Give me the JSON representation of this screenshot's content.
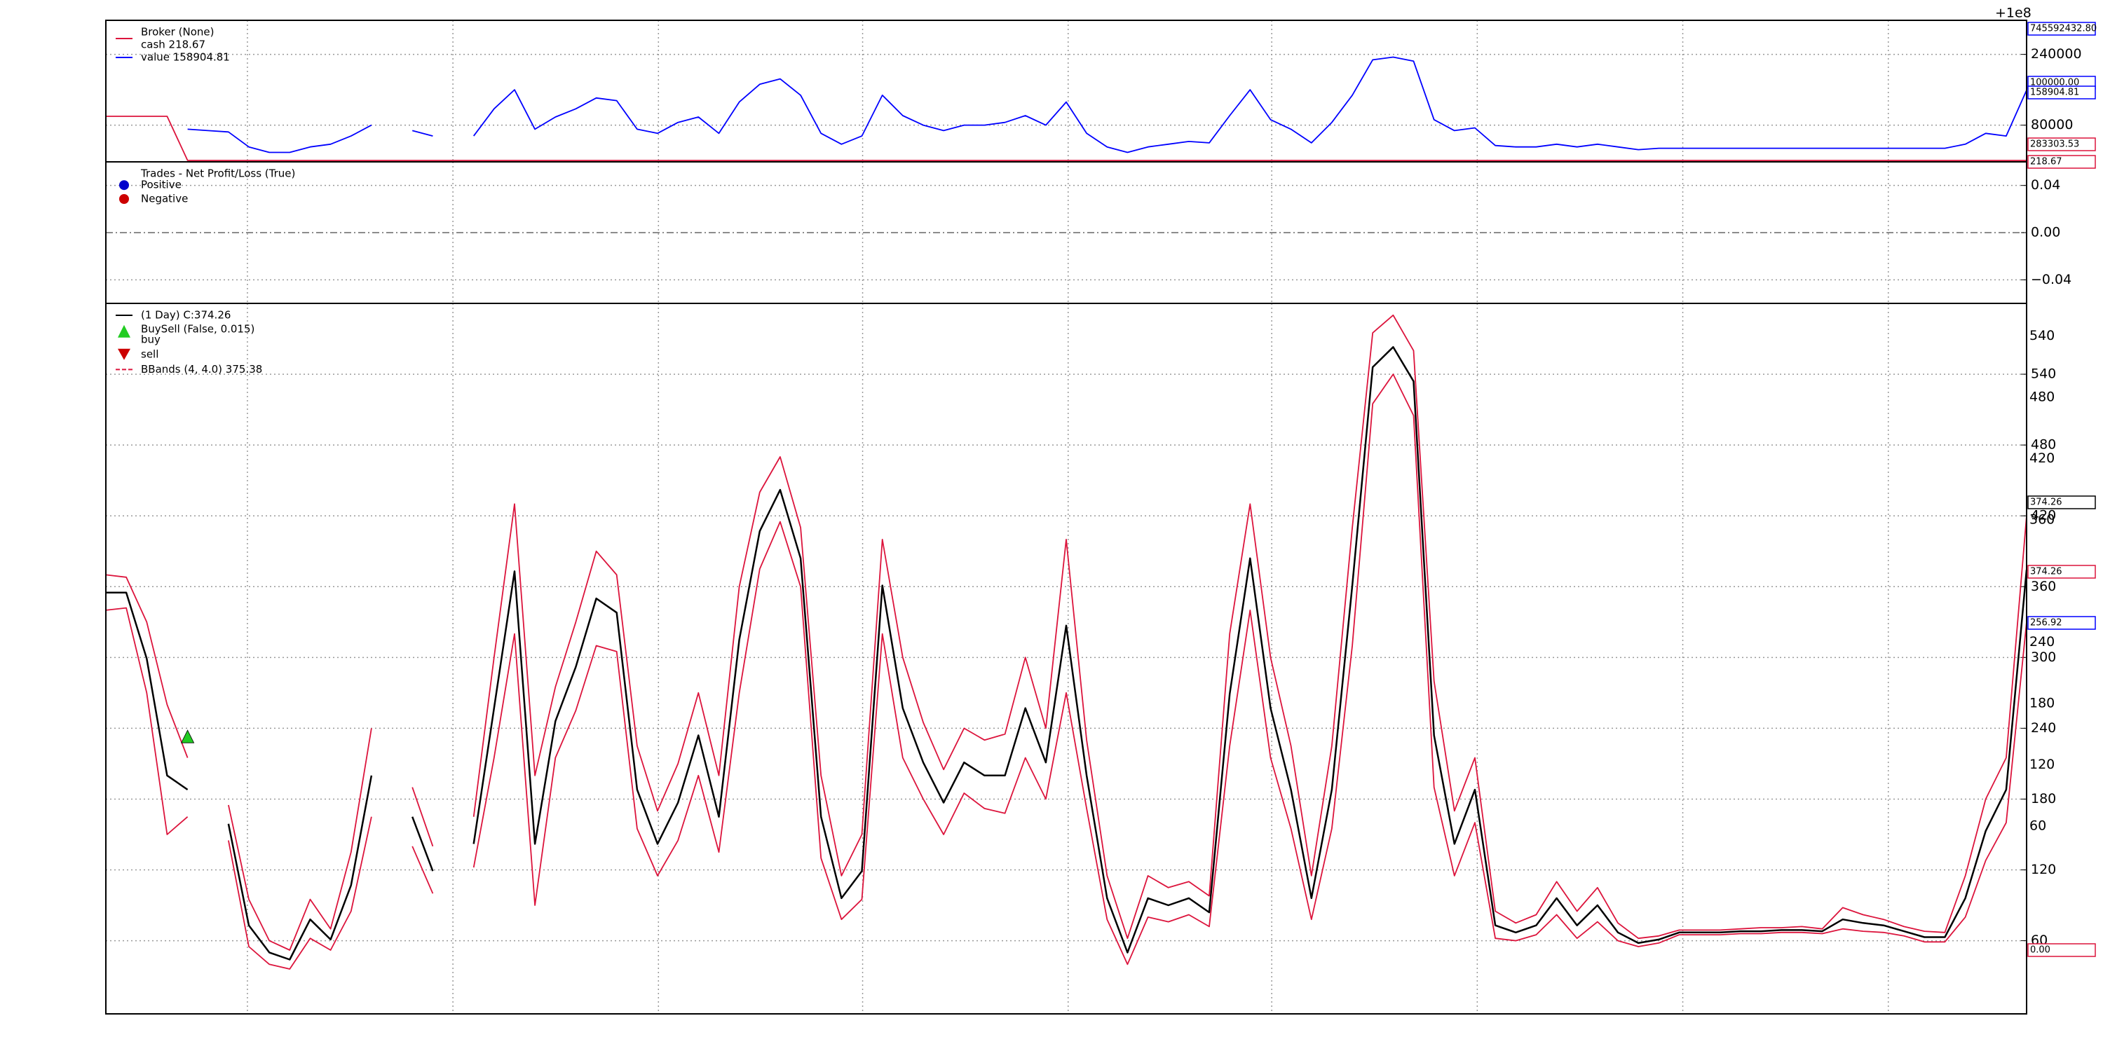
{
  "chart_data": [
    {
      "type": "line",
      "offset_text": "+1e8",
      "legend_title": "Broker (None)",
      "ylim": [
        -3000,
        317000
      ],
      "yticks": [
        80000,
        240000
      ],
      "grid": true,
      "series": [
        {
          "name": "cash 218.67",
          "color": "#dc143c",
          "values": [
            100000,
            100000,
            100000,
            100000,
            218.67,
            218.67,
            218.67,
            218.67,
            218.67,
            218.67,
            218.67,
            218.67,
            218.67,
            218.67,
            218.67,
            218.67,
            218.67,
            218.67,
            218.67,
            218.67,
            218.67,
            218.67,
            218.67,
            218.67,
            218.67,
            218.67,
            218.67,
            218.67,
            218.67,
            218.67,
            218.67,
            218.67,
            218.67,
            218.67,
            218.67,
            218.67,
            218.67,
            218.67,
            218.67,
            218.67,
            218.67,
            218.67,
            218.67,
            218.67,
            218.67,
            218.67,
            218.67,
            218.67,
            218.67,
            218.67,
            218.67,
            218.67,
            218.67,
            218.67,
            218.67,
            218.67,
            218.67,
            218.67,
            218.67,
            218.67,
            218.67,
            218.67,
            218.67,
            218.67,
            218.67,
            218.67,
            218.67,
            218.67,
            218.67,
            218.67,
            218.67,
            218.67,
            218.67,
            218.67,
            218.67,
            218.67,
            218.67,
            218.67,
            218.67,
            218.67,
            218.67,
            218.67,
            218.67,
            218.67,
            218.67,
            218.67,
            218.67,
            218.67,
            218.67,
            218.67,
            218.67,
            218.67,
            218.67,
            218.67,
            218.67
          ]
        },
        {
          "name": "value 158904.81",
          "color": "#0000ff",
          "values": [
            null,
            null,
            null,
            null,
            70769,
            67692,
            64615,
            30770,
            18460,
            18460,
            30770,
            36920,
            55380,
            80000,
            null,
            67690,
            55380,
            null,
            55380,
            116920,
            160000,
            70769,
            98460,
            116920,
            141540,
            135390,
            70769,
            61540,
            86150,
            98460,
            61540,
            132310,
            172310,
            184620,
            147690,
            61540,
            36920,
            55380,
            147690,
            101540,
            80000,
            67690,
            80000,
            80000,
            86150,
            101540,
            80000,
            132310,
            61540,
            30770,
            18460,
            30770,
            36920,
            43080,
            40000,
            101540,
            160000,
            92310,
            70769,
            40000,
            86150,
            147690,
            227690,
            233850,
            224620,
            92310,
            67690,
            73850,
            33850,
            30770,
            30770,
            36920,
            30770,
            36920,
            30770,
            24610,
            27690,
            27690,
            27690,
            27690,
            27690,
            27690,
            27690,
            27690,
            27690,
            27690,
            27690,
            27690,
            27690,
            27690,
            27690,
            36920,
            61540,
            55380,
            158904.81
          ]
        }
      ],
      "last_labels": [
        {
          "label": "745592432.80",
          "color": "#0000ff"
        },
        {
          "label": "100000.00",
          "color": "#0000ff"
        },
        {
          "label": "158904.81",
          "color": "#0000ff"
        },
        {
          "label": "283303.53",
          "color": "#dc143c"
        },
        {
          "label": "218.67",
          "color": "#dc143c"
        }
      ]
    },
    {
      "type": "scatter",
      "legend_title": "Trades - Net Profit/Loss (True)",
      "ylim": [
        -0.06,
        0.06
      ],
      "yticks": [
        0.04,
        {
          "value": 0,
          "label": "0.00"
        },
        {
          "value": -0.04,
          "label": "−0.04"
        }
      ],
      "grid": true,
      "series": [
        {
          "name": "Positive",
          "color": "#0000cc",
          "values": []
        },
        {
          "name": "Negative",
          "color": "#cc0000",
          "values": []
        }
      ]
    },
    {
      "type": "line",
      "ylim": [
        -2,
        600
      ],
      "yticks": [
        60,
        120,
        180,
        240,
        300,
        360,
        420,
        480,
        540
      ],
      "y2lim": [
        -124,
        572
      ],
      "y2ticks": [
        60,
        120,
        180,
        240,
        360,
        420,
        480,
        540
      ],
      "grid": true,
      "series": [
        {
          "name": "(1 Day) C:374.26",
          "color": "#000000",
          "values": [
            355,
            355,
            299,
            200,
            188,
            null,
            159,
            73,
            50,
            44,
            78,
            61,
            107,
            200,
            null,
            165,
            119,
            null,
            142,
            257,
            373,
            142,
            246,
            292,
            350,
            338,
            188,
            142,
            177,
            234,
            165,
            315,
            407,
            442,
            384,
            165,
            96,
            119,
            361,
            257,
            211,
            177,
            211,
            200,
            200,
            257,
            211,
            327,
            200,
            96,
            50,
            96,
            90,
            96,
            84,
            269,
            384,
            257,
            188,
            96,
            188,
            361,
            546,
            563,
            534,
            234,
            142,
            188,
            73,
            67,
            73,
            96,
            73,
            90,
            67,
            58,
            61,
            67,
            67,
            67,
            68,
            68,
            69,
            69,
            68,
            78,
            75,
            73,
            68,
            63,
            63,
            96,
            153,
            188,
            374.26
          ]
        },
        {
          "name": "BBands (4, 4.0) 375.38",
          "color": "#dc143c",
          "dash": true,
          "values": [
            370,
            368,
            330,
            260,
            215,
            null,
            175,
            95,
            60,
            52,
            95,
            70,
            135,
            240,
            null,
            190,
            140,
            null,
            165,
            300,
            430,
            200,
            275,
            330,
            390,
            370,
            225,
            170,
            210,
            270,
            200,
            360,
            440,
            470,
            410,
            200,
            115,
            150,
            400,
            300,
            245,
            205,
            240,
            230,
            235,
            300,
            240,
            400,
            230,
            115,
            62,
            115,
            105,
            110,
            98,
            320,
            430,
            300,
            225,
            115,
            225,
            410,
            575,
            590,
            560,
            280,
            170,
            215,
            85,
            75,
            82,
            110,
            85,
            105,
            75,
            62,
            64,
            69,
            69,
            69,
            70,
            71,
            71,
            72,
            70,
            88,
            82,
            78,
            72,
            68,
            67,
            115,
            180,
            215,
            420
          ],
          "lower": [
            340,
            342,
            270,
            150,
            165,
            null,
            145,
            55,
            40,
            36,
            62,
            52,
            85,
            165,
            null,
            140,
            100,
            null,
            122,
            215,
            320,
            90,
            215,
            255,
            310,
            305,
            155,
            115,
            145,
            200,
            135,
            270,
            375,
            415,
            360,
            130,
            78,
            95,
            320,
            215,
            180,
            150,
            185,
            172,
            168,
            215,
            180,
            270,
            172,
            78,
            40,
            80,
            76,
            82,
            72,
            225,
            340,
            215,
            155,
            78,
            155,
            310,
            515,
            540,
            505,
            190,
            115,
            160,
            62,
            60,
            65,
            82,
            62,
            76,
            60,
            55,
            58,
            65,
            65,
            65,
            66,
            66,
            67,
            67,
            66,
            70,
            68,
            67,
            64,
            59,
            59,
            80,
            128,
            160,
            330
          ]
        }
      ],
      "markers": {
        "title": "BuySell (False, 0.015)",
        "buy": {
          "name": "buy",
          "color": "#22cc22",
          "x": [
            4
          ],
          "values": [
            233
          ]
        },
        "sell": {
          "name": "sell",
          "color": "#cc0000",
          "x": [],
          "values": []
        }
      },
      "last_labels": [
        {
          "label": "374.26",
          "color": "#000000"
        },
        {
          "label": "374.26",
          "color": "#dc143c"
        },
        {
          "label": "256.92",
          "color": "#0000ff"
        },
        {
          "label": "0.00",
          "color": "#dc143c"
        }
      ]
    }
  ]
}
